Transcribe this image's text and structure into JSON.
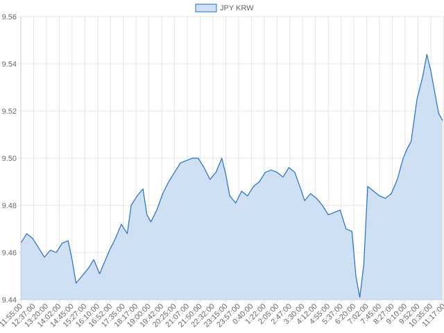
{
  "chart_data": {
    "type": "area",
    "legend": {
      "position": "top",
      "entries": [
        "JPY KRW"
      ]
    },
    "series": [
      {
        "name": "JPY KRW",
        "line_color": "#1f6fc5",
        "fill_color": "#cfe0f4",
        "points": [
          [
            0,
            9.464
          ],
          [
            1.5,
            9.468
          ],
          [
            3,
            9.466
          ],
          [
            4.5,
            9.462
          ],
          [
            6,
            9.458
          ],
          [
            7.5,
            9.461
          ],
          [
            9,
            9.46
          ],
          [
            10.5,
            9.464
          ],
          [
            12,
            9.465
          ],
          [
            13,
            9.457
          ],
          [
            14,
            9.447
          ],
          [
            15.5,
            9.45
          ],
          [
            17,
            9.453
          ],
          [
            18.5,
            9.457
          ],
          [
            20,
            9.451
          ],
          [
            21,
            9.455
          ],
          [
            22.5,
            9.461
          ],
          [
            24,
            9.466
          ],
          [
            25.5,
            9.472
          ],
          [
            27,
            9.468
          ],
          [
            28,
            9.48
          ],
          [
            29.5,
            9.484
          ],
          [
            31,
            9.487
          ],
          [
            32,
            9.476
          ],
          [
            33,
            9.473
          ],
          [
            34.5,
            9.478
          ],
          [
            36,
            9.485
          ],
          [
            37.5,
            9.49
          ],
          [
            39,
            9.494
          ],
          [
            40.5,
            9.498
          ],
          [
            42,
            9.499
          ],
          [
            43.5,
            9.5
          ],
          [
            45,
            9.5
          ],
          [
            46.5,
            9.496
          ],
          [
            48,
            9.491
          ],
          [
            49.5,
            9.494
          ],
          [
            51,
            9.5
          ],
          [
            52,
            9.493
          ],
          [
            53,
            9.484
          ],
          [
            54.5,
            9.481
          ],
          [
            56,
            9.486
          ],
          [
            57.5,
            9.484
          ],
          [
            59,
            9.488
          ],
          [
            60.5,
            9.49
          ],
          [
            62,
            9.494
          ],
          [
            63.5,
            9.495
          ],
          [
            65,
            9.494
          ],
          [
            66.5,
            9.492
          ],
          [
            68,
            9.496
          ],
          [
            69.5,
            9.494
          ],
          [
            71,
            9.487
          ],
          [
            72,
            9.482
          ],
          [
            73.5,
            9.485
          ],
          [
            75,
            9.483
          ],
          [
            76.5,
            9.48
          ],
          [
            78,
            9.476
          ],
          [
            79.5,
            9.477
          ],
          [
            81,
            9.478
          ],
          [
            82.5,
            9.47
          ],
          [
            84,
            9.469
          ],
          [
            85,
            9.45
          ],
          [
            86,
            9.441
          ],
          [
            87,
            9.455
          ],
          [
            88,
            9.488
          ],
          [
            89.5,
            9.486
          ],
          [
            91,
            9.484
          ],
          [
            92.5,
            9.483
          ],
          [
            94,
            9.485
          ],
          [
            95.5,
            9.491
          ],
          [
            97,
            9.5
          ],
          [
            98,
            9.504
          ],
          [
            99,
            9.507
          ],
          [
            100.5,
            9.525
          ],
          [
            102,
            9.535
          ],
          [
            103,
            9.544
          ],
          [
            104,
            9.537
          ],
          [
            105,
            9.528
          ],
          [
            106,
            9.519
          ],
          [
            107,
            9.516
          ]
        ]
      }
    ],
    "x_tick_labels": [
      "11:55:00",
      "12:37:00",
      "13:20:00",
      "14:02:00",
      "14:45:00",
      "15:27:00",
      "16:10:00",
      "16:52:00",
      "17:35:00",
      "18:17:00",
      "19:00:00",
      "19:42:00",
      "20:25:00",
      "21:07:00",
      "21:50:00",
      "22:32:00",
      "23:15:00",
      "23:57:00",
      "0:40:00",
      "1:22:00",
      "2:05:00",
      "2:47:00",
      "3:30:00",
      "4:12:00",
      "4:55:00",
      "5:37:00",
      "6:20:00",
      "7:02:00",
      "7:45:00",
      "8:27:00",
      "9:10:00",
      "9:52:00",
      "10:35:00",
      "11:17:00"
    ],
    "x_tick_step": 3.25,
    "x_range": [
      0,
      107
    ],
    "y_ticks": [
      9.44,
      9.46,
      9.48,
      9.5,
      9.52,
      9.54,
      9.56
    ],
    "y_tick_labels": [
      "9.44",
      "9.46",
      "9.48",
      "9.50",
      "9.52",
      "9.54",
      "9.56"
    ],
    "ylim": [
      9.44,
      9.56
    ],
    "grid": true,
    "title": "",
    "xlabel": "",
    "ylabel": ""
  }
}
